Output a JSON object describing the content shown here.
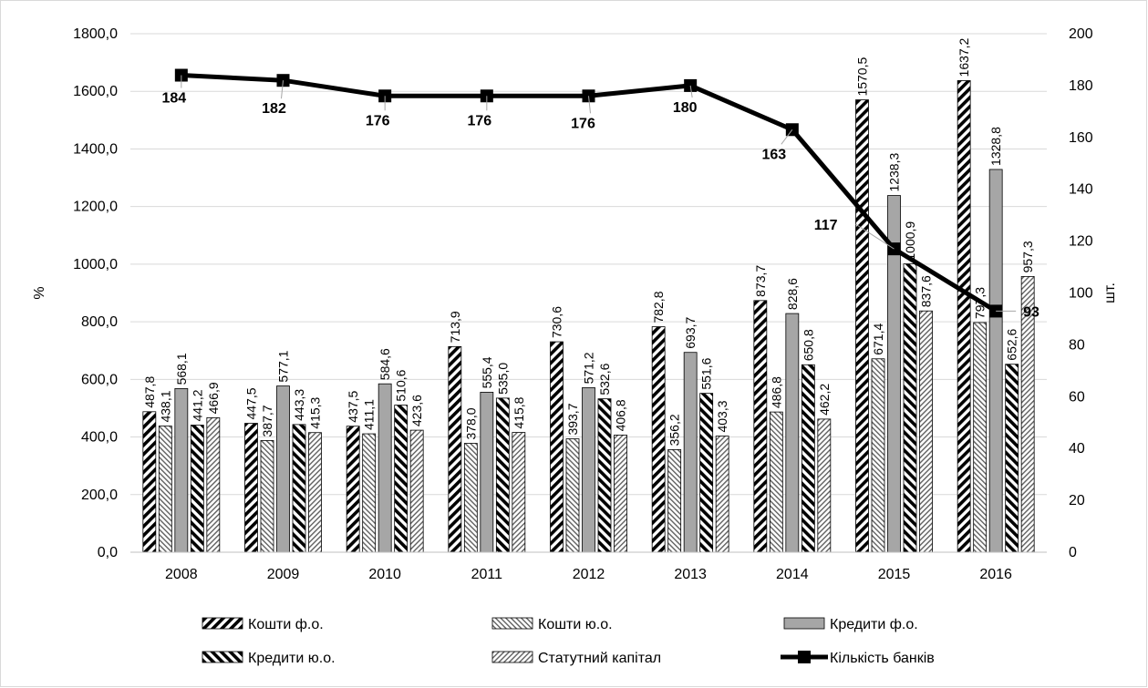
{
  "chart_data": {
    "type": "bar",
    "categories": [
      "2008",
      "2009",
      "2010",
      "2011",
      "2012",
      "2013",
      "2014",
      "2015",
      "2016"
    ],
    "series": [
      {
        "name": "Кошти ф.о.",
        "type": "bar",
        "pattern": "fwd-bold",
        "values": [
          487.8,
          447.5,
          437.5,
          713.9,
          730.6,
          782.8,
          873.7,
          1570.5,
          1637.2
        ],
        "labels": [
          "487,8",
          "447,5",
          "437,5",
          "713,9",
          "730,6",
          "782,8",
          "873,7",
          "1570,5",
          "1637,2"
        ]
      },
      {
        "name": "Кошти ю.о.",
        "type": "bar",
        "pattern": "back-fine",
        "values": [
          438.1,
          387.7,
          411.1,
          378.0,
          393.7,
          356.2,
          486.8,
          671.4,
          797.3
        ],
        "labels": [
          "438,1",
          "387,7",
          "411,1",
          "378,0",
          "393,7",
          "356,2",
          "486,8",
          "671,4",
          "797,3"
        ]
      },
      {
        "name": "Кредити ф.о.",
        "type": "bar",
        "pattern": "solid-gray",
        "values": [
          568.1,
          577.1,
          584.6,
          555.4,
          571.2,
          693.7,
          828.6,
          1238.3,
          1328.8
        ],
        "labels": [
          "568,1",
          "577,1",
          "584,6",
          "555,4",
          "571,2",
          "693,7",
          "828,6",
          "1238,3",
          "1328,8"
        ]
      },
      {
        "name": "Кредити ю.о.",
        "type": "bar",
        "pattern": "back-bold",
        "values": [
          441.2,
          443.3,
          510.6,
          535.0,
          532.6,
          551.6,
          650.8,
          1000.9,
          652.6
        ],
        "labels": [
          "441,2",
          "443,3",
          "510,6",
          "535,0",
          "532,6",
          "551,6",
          "650,8",
          "1000,9",
          "652,6"
        ]
      },
      {
        "name": "Статутний капітал",
        "type": "bar",
        "pattern": "fwd-fine",
        "values": [
          466.9,
          415.3,
          423.6,
          415.8,
          406.8,
          403.3,
          462.2,
          837.6,
          957.3
        ],
        "labels": [
          "466,9",
          "415,3",
          "423,6",
          "415,8",
          "406,8",
          "403,3",
          "462,2",
          "837,6",
          "957,3"
        ]
      },
      {
        "name": "Кількість банків",
        "type": "line",
        "axis": "right",
        "values": [
          184,
          182,
          176,
          176,
          176,
          180,
          163,
          117,
          93
        ],
        "labels": [
          "184",
          "182",
          "176",
          "176",
          "176",
          "180",
          "163",
          "117",
          "93"
        ]
      }
    ],
    "y_left": {
      "label": "%",
      "min": 0,
      "max": 1800,
      "ticks": [
        "0,0",
        "200,0",
        "400,0",
        "600,0",
        "800,0",
        "1000,0",
        "1200,0",
        "1400,0",
        "1600,0",
        "1800,0"
      ]
    },
    "y_right": {
      "label": "шт.",
      "min": 0,
      "max": 200,
      "ticks": [
        "0",
        "20",
        "40",
        "60",
        "80",
        "100",
        "120",
        "140",
        "160",
        "180",
        "200"
      ]
    },
    "grid": true,
    "legend_position": "bottom",
    "colors": {
      "line": "#000000",
      "bar_gray": "#a6a6a6",
      "grid": "#d9d9d9",
      "axis": "#bfbfbf"
    }
  }
}
